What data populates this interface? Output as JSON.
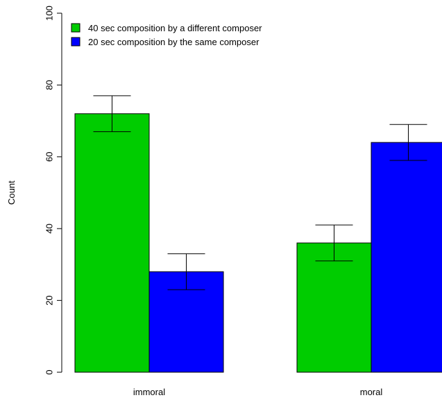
{
  "chart_data": {
    "type": "bar",
    "title": "",
    "xlabel": "",
    "ylabel": "Count",
    "ylim": [
      0,
      100
    ],
    "yticks": [
      0,
      20,
      40,
      60,
      80,
      100
    ],
    "categories": [
      "immoral",
      "moral"
    ],
    "series": [
      {
        "name": "40 sec composition by a different composer",
        "color": "#00cc00",
        "values": [
          72,
          36
        ],
        "error_low": [
          67,
          31
        ],
        "error_high": [
          77,
          41
        ]
      },
      {
        "name": "20 sec composition by the same composer",
        "color": "#0000ff",
        "values": [
          28,
          64
        ],
        "error_low": [
          23,
          59
        ],
        "error_high": [
          33,
          69
        ]
      }
    ],
    "legend_position": "top-left",
    "grid": false
  }
}
